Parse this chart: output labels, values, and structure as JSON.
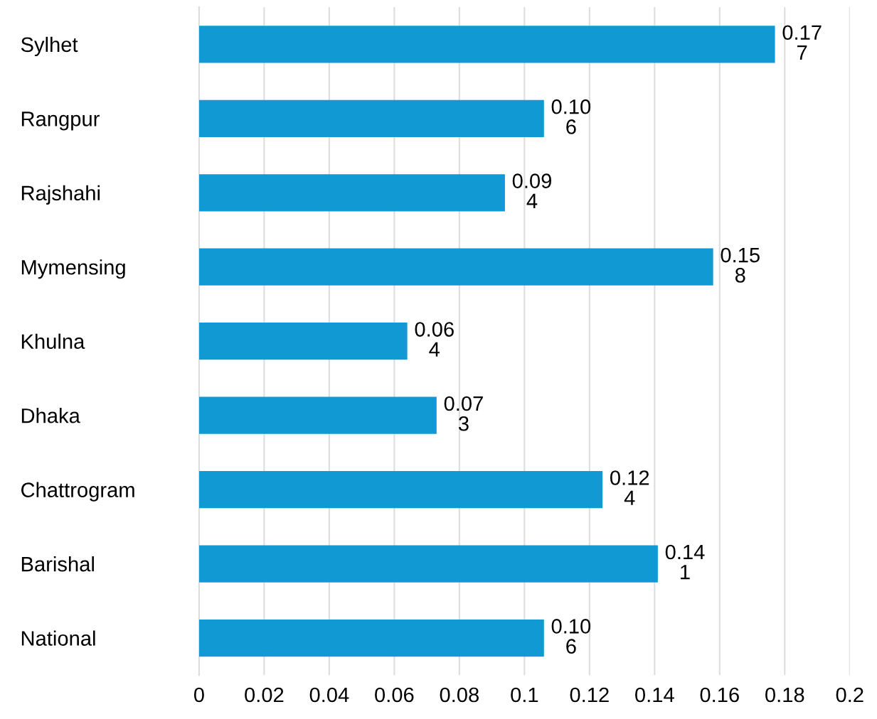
{
  "chart_data": {
    "type": "bar",
    "orientation": "horizontal",
    "categories": [
      "Sylhet",
      "Rangpur",
      "Rajshahi",
      "Mymensing",
      "Khulna",
      "Dhaka",
      "Chattrogram",
      "Barishal",
      "National"
    ],
    "values": [
      0.177,
      0.106,
      0.094,
      0.158,
      0.064,
      0.073,
      0.124,
      0.141,
      0.106
    ],
    "color": "#1199d3",
    "xlim": [
      0,
      0.2
    ],
    "xticks": [
      0,
      0.02,
      0.04,
      0.06,
      0.08,
      0.1,
      0.12,
      0.14,
      0.16,
      0.18,
      0.2
    ],
    "grid": "x",
    "data_labels": true
  }
}
